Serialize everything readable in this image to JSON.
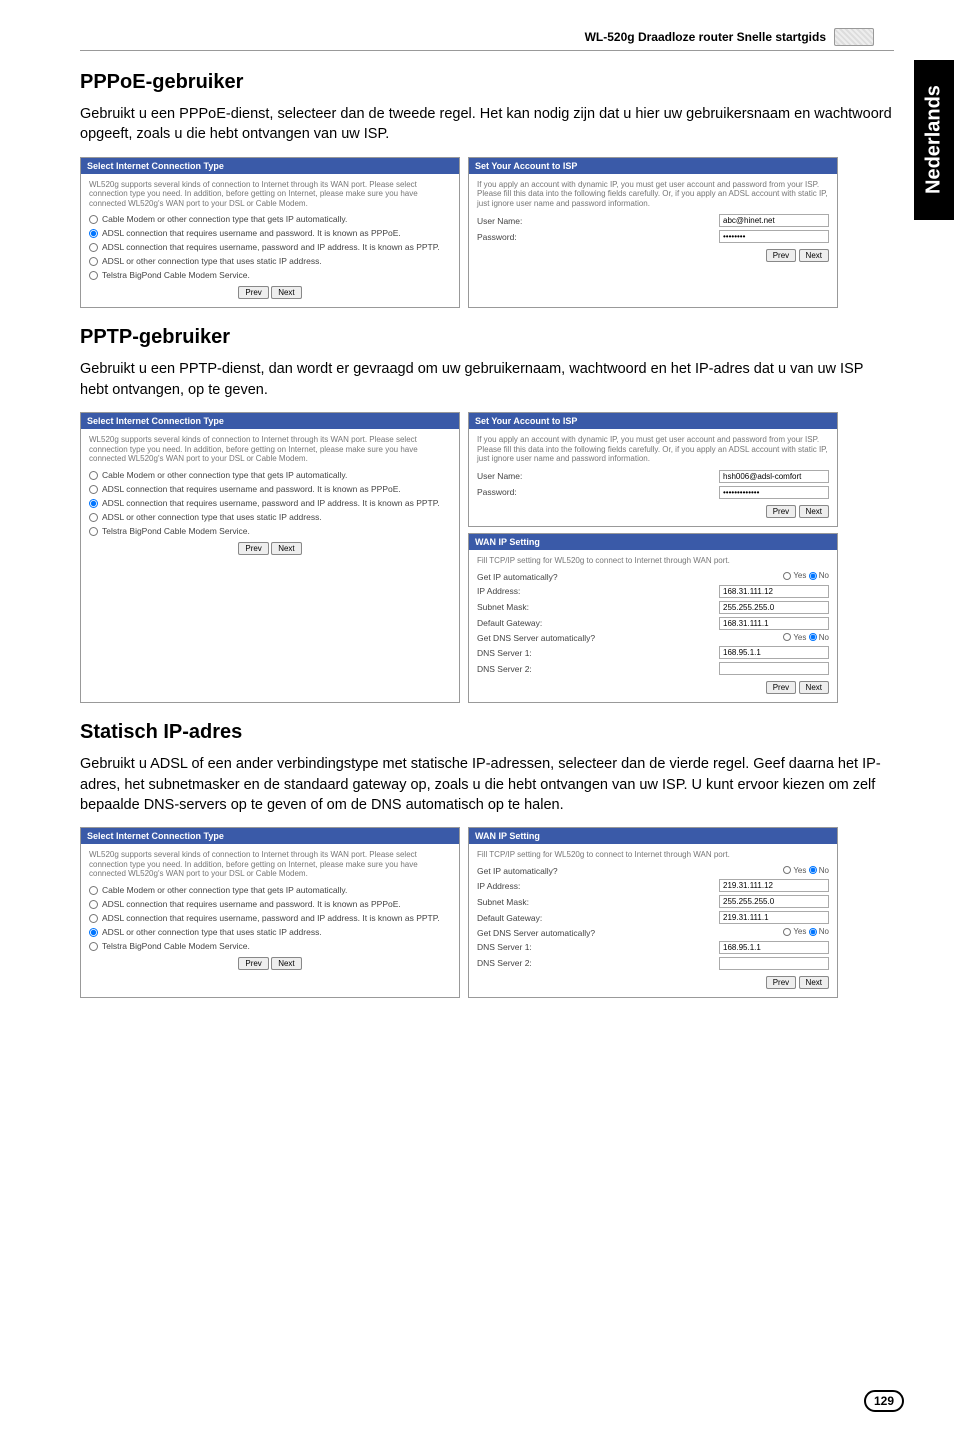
{
  "header": {
    "title": "WL-520g Draadloze router Snelle startgids"
  },
  "sideTab": "Nederlands",
  "pageNumber": "129",
  "section1": {
    "heading": "PPPoE-gebruiker",
    "body": "Gebruikt u een PPPoE-dienst, selecteer dan de tweede regel. Het kan nodig zijn dat u hier uw gebruikersnaam en wachtwoord opgeeft, zoals u die hebt ontvangen van uw ISP.",
    "leftPanel": {
      "title": "Select Internet Connection Type",
      "desc": "WL520g supports several kinds of connection to Internet through its WAN port. Please select connection type you need. In addition, before getting on Internet, please make sure you have connected WL520g's WAN port to your DSL or Cable Modem.",
      "options": [
        "Cable Modem or other connection type that gets IP automatically.",
        "ADSL connection that requires username and password. It is known as PPPoE.",
        "ADSL connection that requires username, password and IP address. It is known as PPTP.",
        "ADSL or other connection type that uses static IP address.",
        "Telstra BigPond Cable Modem Service."
      ],
      "selectedIndex": 1,
      "buttons": {
        "prev": "Prev",
        "next": "Next"
      }
    },
    "rightPanel": {
      "title": "Set Your Account to ISP",
      "desc": "If you apply an account with dynamic IP, you must get user account and password from your ISP. Please fill this data into the following fields carefully. Or, if you apply an ADSL account with static IP, just ignore user name and password information.",
      "fields": {
        "username_label": "User Name:",
        "username_value": "abc@hinet.net",
        "password_label": "Password:",
        "password_value": "••••••••"
      },
      "buttons": {
        "prev": "Prev",
        "next": "Next"
      }
    }
  },
  "section2": {
    "heading": "PPTP-gebruiker",
    "body": "Gebruikt u een PPTP-dienst, dan wordt er gevraagd om uw gebruikernaam, wachtwoord en het IP-adres dat u van uw ISP hebt ontvangen, op te geven.",
    "leftPanel": {
      "title": "Select Internet Connection Type",
      "desc": "WL520g supports several kinds of connection to Internet through its WAN port. Please select connection type you need. In addition, before getting on Internet, please make sure you have connected WL520g's WAN port to your DSL or Cable Modem.",
      "options": [
        "Cable Modem or other connection type that gets IP automatically.",
        "ADSL connection that requires username and password. It is known as PPPoE.",
        "ADSL connection that requires username, password and IP address. It is known as PPTP.",
        "ADSL or other connection type that uses static IP address.",
        "Telstra BigPond Cable Modem Service."
      ],
      "selectedIndex": 2,
      "buttons": {
        "prev": "Prev",
        "next": "Next"
      }
    },
    "rightTop": {
      "title": "Set Your Account to ISP",
      "desc": "If you apply an account with dynamic IP, you must get user account and password from your ISP. Please fill this data into the following fields carefully. Or, if you apply an ADSL account with static IP, just ignore user name and password information.",
      "fields": {
        "username_label": "User Name:",
        "username_value": "hsh006@adsl-comfort",
        "password_label": "Password:",
        "password_value": "•••••••••••••"
      },
      "buttons": {
        "prev": "Prev",
        "next": "Next"
      }
    },
    "rightBottom": {
      "title": "WAN IP Setting",
      "desc": "Fill TCP/IP setting for WL520g to connect to Internet through WAN port.",
      "fields": {
        "getip_label": "Get IP automatically?",
        "ip_label": "IP Address:",
        "ip_value": "168.31.111.12",
        "mask_label": "Subnet Mask:",
        "mask_value": "255.255.255.0",
        "gw_label": "Default Gateway:",
        "gw_value": "168.31.111.1",
        "dns_auto_label": "Get DNS Server automatically?",
        "dns1_label": "DNS Server 1:",
        "dns1_value": "168.95.1.1",
        "dns2_label": "DNS Server 2:",
        "dns2_value": ""
      },
      "yes": "Yes",
      "no": "No",
      "buttons": {
        "prev": "Prev",
        "next": "Next"
      }
    }
  },
  "section3": {
    "heading": "Statisch IP-adres",
    "body": "Gebruikt u ADSL of een ander verbindingstype met statische IP-adressen, selecteer dan de vierde regel. Geef daarna het IP-adres, het subnetmasker en de standaard gateway op, zoals u die hebt ontvangen van uw ISP. U kunt ervoor kiezen om zelf bepaalde DNS-servers op te geven of om de DNS automatisch op te halen.",
    "leftPanel": {
      "title": "Select Internet Connection Type",
      "desc": "WL520g supports several kinds of connection to Internet through its WAN port. Please select connection type you need. In addition, before getting on Internet, please make sure you have connected WL520g's WAN port to your DSL or Cable Modem.",
      "options": [
        "Cable Modem or other connection type that gets IP automatically.",
        "ADSL connection that requires username and password. It is known as PPPoE.",
        "ADSL connection that requires username, password and IP address. It is known as PPTP.",
        "ADSL or other connection type that uses static IP address.",
        "Telstra BigPond Cable Modem Service."
      ],
      "selectedIndex": 3,
      "buttons": {
        "prev": "Prev",
        "next": "Next"
      }
    },
    "rightPanel": {
      "title": "WAN IP Setting",
      "desc": "Fill TCP/IP setting for WL520g to connect to Internet through WAN port.",
      "fields": {
        "getip_label": "Get IP automatically?",
        "ip_label": "IP Address:",
        "ip_value": "219.31.111.12",
        "mask_label": "Subnet Mask:",
        "mask_value": "255.255.255.0",
        "gw_label": "Default Gateway:",
        "gw_value": "219.31.111.1",
        "dns_auto_label": "Get DNS Server automatically?",
        "dns1_label": "DNS Server 1:",
        "dns1_value": "168.95.1.1",
        "dns2_label": "DNS Server 2:",
        "dns2_value": ""
      },
      "yes": "Yes",
      "no": "No",
      "buttons": {
        "prev": "Prev",
        "next": "Next"
      }
    }
  }
}
